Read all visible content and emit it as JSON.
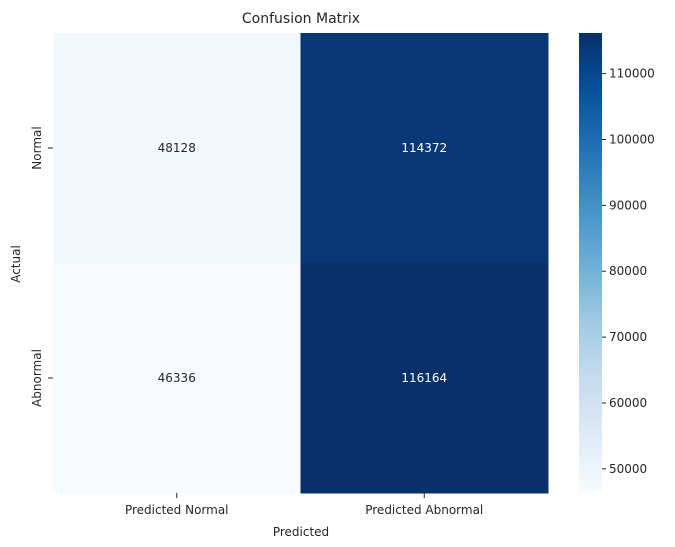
{
  "chart_data": {
    "type": "heatmap",
    "title": "Confusion Matrix",
    "xlabel": "Predicted",
    "ylabel": "Actual",
    "x_categories": [
      "Predicted Normal",
      "Predicted Abnormal"
    ],
    "y_categories": [
      "Normal",
      "Abnormal"
    ],
    "values": [
      [
        48128,
        114372
      ],
      [
        46336,
        116164
      ]
    ],
    "cell_labels": [
      [
        "48128",
        "114372"
      ],
      [
        "46336",
        "116164"
      ]
    ],
    "colormap": "Blues",
    "colorbar": {
      "vmin": 46336,
      "vmax": 116164,
      "ticks": [
        50000,
        60000,
        70000,
        80000,
        90000,
        100000,
        110000
      ],
      "tick_labels": [
        "50000",
        "60000",
        "70000",
        "80000",
        "90000",
        "100000",
        "110000"
      ]
    },
    "grid": false
  }
}
